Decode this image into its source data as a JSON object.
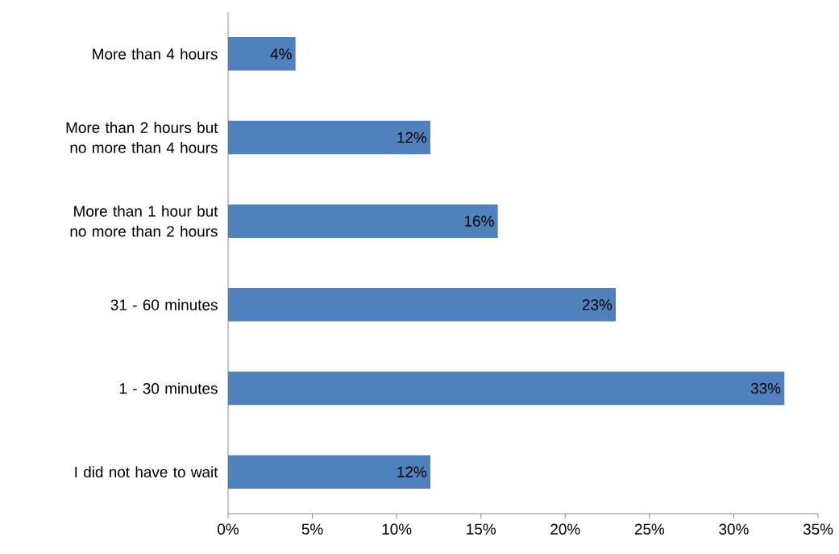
{
  "chart_data": {
    "type": "bar",
    "orientation": "horizontal",
    "categories": [
      "More than 4 hours",
      "More than 2 hours but no more than 4 hours",
      "More than 1 hour but no more than 2 hours",
      "31 - 60 minutes",
      "1 - 30 minutes",
      "I did not have to wait"
    ],
    "values": [
      4,
      12,
      16,
      23,
      33,
      12
    ],
    "value_labels": [
      "4%",
      "12%",
      "16%",
      "23%",
      "33%",
      "12%"
    ],
    "color": "#4f81bd",
    "xlim": [
      0,
      35
    ],
    "xticks": [
      {
        "value": 0,
        "label": "0%"
      },
      {
        "value": 5,
        "label": "5%"
      },
      {
        "value": 10,
        "label": "10%"
      },
      {
        "value": 15,
        "label": "15%"
      },
      {
        "value": 20,
        "label": "20%"
      },
      {
        "value": 25,
        "label": "25%"
      },
      {
        "value": 30,
        "label": "30%"
      },
      {
        "value": 35,
        "label": "35%"
      }
    ]
  }
}
